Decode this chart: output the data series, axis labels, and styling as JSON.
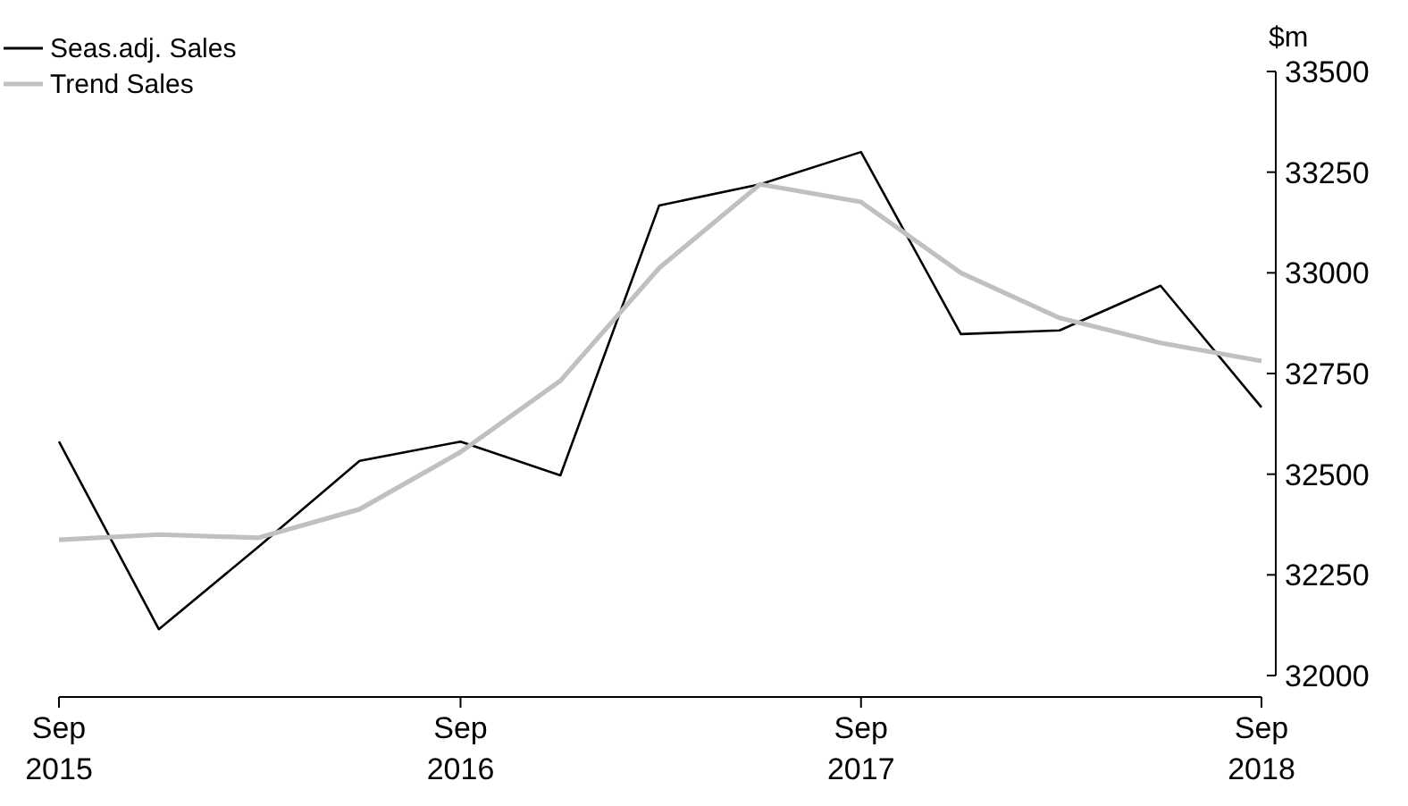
{
  "chart_data": {
    "type": "line",
    "ylabel": "$m",
    "x": [
      "2015-09",
      "2015-12",
      "2016-03",
      "2016-06",
      "2016-09",
      "2016-12",
      "2017-03",
      "2017-06",
      "2017-09",
      "2017-12",
      "2018-03",
      "2018-06",
      "2018-09"
    ],
    "series": [
      {
        "name": "Seas.adj. Sales",
        "color": "#000000",
        "values": [
          32581,
          32115,
          32320,
          32533,
          32581,
          32497,
          33167,
          33220,
          33300,
          32848,
          32857,
          32968,
          32666
        ]
      },
      {
        "name": "Trend Sales",
        "color": "#c0c0c0",
        "values": [
          32337,
          32350,
          32342,
          32413,
          32555,
          32732,
          33012,
          33220,
          33176,
          33000,
          32888,
          32826,
          32781
        ]
      }
    ],
    "xlim": [
      "2015-09",
      "2018-09"
    ],
    "xticks": [
      {
        "value": "2015-09",
        "label": "Sep 2015"
      },
      {
        "value": "2016-09",
        "label": "Sep 2016"
      },
      {
        "value": "2017-09",
        "label": "Sep 2017"
      },
      {
        "value": "2018-09",
        "label": "Sep 2018"
      }
    ],
    "ylim": [
      32000,
      33500
    ],
    "yticks": [
      32000,
      32250,
      32500,
      32750,
      33000,
      33250,
      33500
    ],
    "grid": false,
    "legend": "top left",
    "marker": "none",
    "line_style": "solid"
  }
}
